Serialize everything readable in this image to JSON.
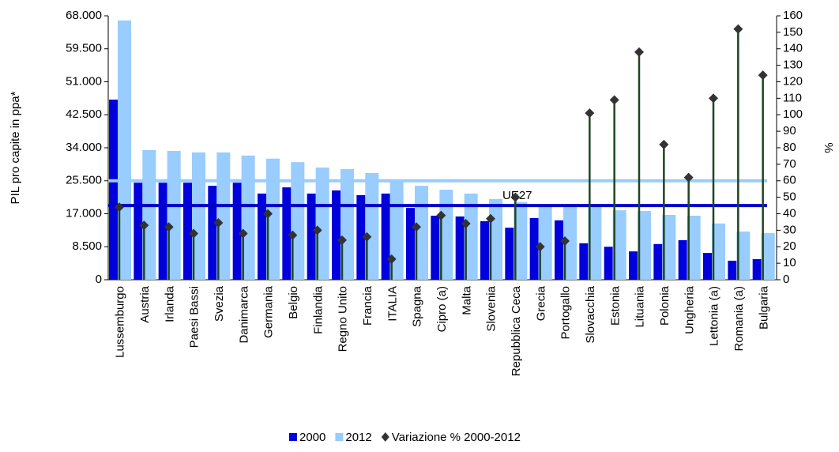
{
  "chart_data": {
    "type": "bar-line-stem",
    "y_label": "PIL pro capite in ppa*",
    "y2_label": "%",
    "categories": [
      "Lussemburgo",
      "Austria",
      "Irlanda",
      "Paesi Bassi",
      "Svezia",
      "Danimarca",
      "Germania",
      "Belgio",
      "Finlandia",
      "Regno Unito",
      "Francia",
      "ITALIA",
      "Spagna",
      "Cipro (a)",
      "Malta",
      "Slovenia",
      "Repubblica Ceca",
      "Grecia",
      "Portogallo",
      "Slovacchia",
      "Estonia",
      "Lituania",
      "Polonia",
      "Ungheria",
      "Lettonia (a)",
      "Romania (a)",
      "Bulgaria"
    ],
    "series": [
      {
        "name": "2000",
        "color": "#0000dd",
        "values": [
          46400,
          25000,
          25000,
          25000,
          24200,
          25000,
          22200,
          23800,
          22200,
          23000,
          21800,
          22200,
          18500,
          16500,
          16300,
          15100,
          13400,
          15900,
          15300,
          9400,
          8500,
          7300,
          9200,
          10200,
          6900,
          4900,
          5300
        ]
      },
      {
        "name": "2012",
        "color": "#99ccff",
        "values": [
          66800,
          33400,
          33200,
          32800,
          32800,
          32000,
          31200,
          30300,
          28900,
          28500,
          27500,
          25500,
          24200,
          23200,
          22200,
          20800,
          20000,
          19100,
          18700,
          18700,
          17900,
          17700,
          16700,
          16500,
          14500,
          12400,
          12000
        ]
      },
      {
        "name": "Variazione % 2000-2012",
        "color": "#333333",
        "stem_color": "#1e4620",
        "axis": "y2",
        "values": [
          44,
          33,
          32,
          28,
          34.5,
          28,
          40,
          27,
          30,
          24,
          26,
          12.5,
          32,
          39,
          34,
          37,
          50,
          20,
          23.5,
          101,
          109,
          138,
          82,
          62,
          110,
          152,
          124
        ]
      }
    ],
    "reference_lines": {
      "label": "UE27",
      "values": [
        19100,
        25500
      ],
      "colors": [
        "#0000cc",
        "#99ccff"
      ]
    },
    "ylim": [
      0,
      68000
    ],
    "yticks": [
      0,
      {
        "value": 8500,
        "label": "8.500"
      },
      {
        "value": 17000,
        "label": "17.000"
      },
      {
        "value": 25500,
        "label": "25.500"
      },
      {
        "value": 34000,
        "label": "34.000"
      },
      {
        "value": 42500,
        "label": "42.500"
      },
      {
        "value": 51000,
        "label": "51.000"
      },
      {
        "value": 59500,
        "label": "59.500"
      },
      {
        "value": 68000,
        "label": "68.000"
      }
    ],
    "y2lim": [
      0,
      160
    ],
    "y2ticks": [
      0,
      10,
      20,
      30,
      40,
      50,
      60,
      70,
      80,
      90,
      100,
      110,
      120,
      130,
      140,
      150,
      160
    ]
  }
}
